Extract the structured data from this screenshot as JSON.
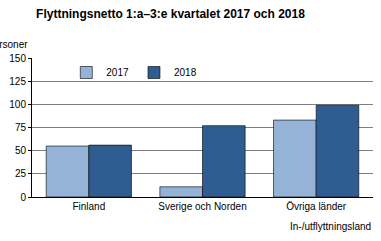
{
  "chart_data": {
    "type": "bar",
    "title": "Flyttningsnetto 1:a–3:e kvartalet 2017 och 2018",
    "y_label": "Personer",
    "x_label": "In-/utflyttningsland",
    "categories": [
      "Finland",
      "Sverige och Norden",
      "Övriga länder"
    ],
    "series": [
      {
        "name": "2017",
        "color": "#95b3d7",
        "values": [
          55,
          11,
          83
        ]
      },
      {
        "name": "2018",
        "color": "#2f5d92",
        "values": [
          56,
          77,
          99
        ]
      }
    ],
    "ylim": [
      0,
      150
    ],
    "yticks": [
      0,
      25,
      50,
      75,
      100,
      125,
      150
    ],
    "grid": true,
    "legend": "top"
  }
}
